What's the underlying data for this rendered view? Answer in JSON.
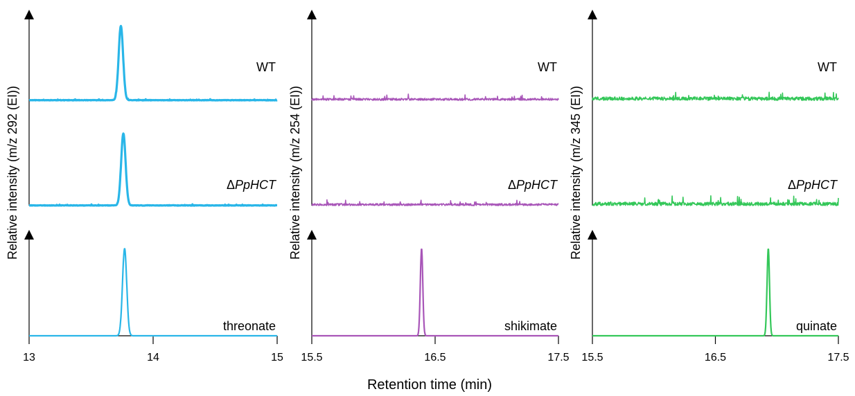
{
  "figure": {
    "xlabel": "Retention time (min)",
    "ylabel": "Relative intensity (m/z {mz} (EI))"
  },
  "chart_data": [
    {
      "type": "line",
      "color": "#29b6e8",
      "ylabel": "Relative intensity (m/z 292 (EI))",
      "xlim": [
        13,
        15
      ],
      "ticks": [
        "13",
        "14",
        "15"
      ],
      "tick_values": [
        13,
        14,
        15
      ],
      "grid": false,
      "noise": "low",
      "series": [
        {
          "name": "WT",
          "peak_rt": 13.74,
          "peak_height": 0.87,
          "peak_width": 0.018
        },
        {
          "name": "ΔPpHCT",
          "peak_rt": 13.76,
          "peak_height": 0.85,
          "peak_width": 0.018
        },
        {
          "name": "threonate",
          "peak_rt": 13.77,
          "peak_height": 0.87,
          "peak_width": 0.017
        }
      ]
    },
    {
      "type": "line",
      "color": "#a855b8",
      "ylabel": "Relative intensity (m/z 254 (EI))",
      "xlim": [
        15.5,
        17.5
      ],
      "ticks": [
        "15.5",
        "16.5",
        "17.5"
      ],
      "tick_values": [
        15.5,
        16.5,
        17.5
      ],
      "grid": false,
      "noise": "medium",
      "series": [
        {
          "name": "WT",
          "peak_rt": null,
          "peak_height": 0,
          "peak_width": 0
        },
        {
          "name": "ΔPpHCT",
          "peak_rt": null,
          "peak_height": 0,
          "peak_width": 0
        },
        {
          "name": "shikimate",
          "peak_rt": 16.39,
          "peak_height": 0.87,
          "peak_width": 0.01
        }
      ]
    },
    {
      "type": "line",
      "color": "#34c759",
      "ylabel": "Relative intensity (m/z 345 (EI))",
      "xlim": [
        15.5,
        17.5
      ],
      "ticks": [
        "15.5",
        "16.5",
        "17.5"
      ],
      "tick_values": [
        15.5,
        16.5,
        17.5
      ],
      "grid": false,
      "noise": "high",
      "series": [
        {
          "name": "WT",
          "peak_rt": null,
          "peak_height": 0,
          "peak_width": 0
        },
        {
          "name": "ΔPpHCT",
          "peak_rt": null,
          "peak_height": 0,
          "peak_width": 0
        },
        {
          "name": "quinate",
          "peak_rt": 16.93,
          "peak_height": 0.87,
          "peak_width": 0.01
        }
      ]
    }
  ]
}
